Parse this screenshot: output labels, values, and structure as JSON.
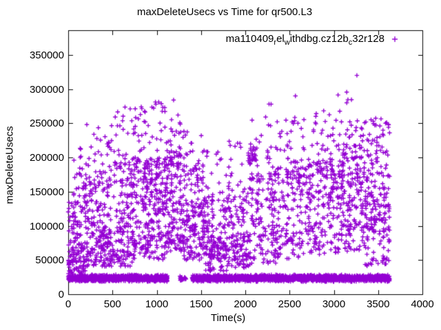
{
  "chart_data": {
    "type": "scatter",
    "title": "maxDeleteUsecs vs Time for qr500.L3",
    "xlabel": "Time(s)",
    "ylabel": "maxDeleteUsecs",
    "xlim": [
      0,
      4000
    ],
    "ylim": [
      0,
      386000
    ],
    "xticks": [
      0,
      500,
      1000,
      1500,
      2000,
      2500,
      3000,
      3500,
      4000
    ],
    "yticks": [
      0,
      50000,
      100000,
      150000,
      200000,
      250000,
      300000,
      350000
    ],
    "grid": false,
    "background_color": "#ffffff",
    "axis_color": "#000000",
    "legend": {
      "position": "top-right-inside",
      "marker": "+"
    },
    "series": [
      {
        "name": "ma110409_rel_withdbg.cz12b_c32r128",
        "display_segments": [
          {
            "text": "ma110409"
          },
          {
            "text": "r",
            "sub": true
          },
          {
            "text": "el"
          },
          {
            "text": "w",
            "sub": true
          },
          {
            "text": "ithdbg.cz12b"
          },
          {
            "text": "c",
            "sub": true
          },
          {
            "text": "32r128"
          }
        ],
        "marker": "+",
        "color": "#9400D3",
        "t_range": [
          0,
          3630
        ],
        "notable_points": [
          [
            3260,
            320000
          ],
          [
            2566,
            290000
          ],
          [
            1190,
            284000
          ],
          [
            1022,
            281000
          ],
          [
            990,
            278000
          ],
          [
            825,
            274000
          ],
          [
            700,
            271000
          ],
          [
            3180,
            252000
          ],
          [
            3420,
            255000
          ],
          [
            210,
            248000
          ],
          [
            1240,
            262000
          ],
          [
            3520,
            246000
          ]
        ],
        "point_cloud_model": {
          "seed": 1234,
          "floor_band": {
            "center": 23500,
            "spread": 5500,
            "min": 16500,
            "max": 31500,
            "segments": [
              {
                "t0": 0,
                "t1": 1120,
                "n": 880
              },
              {
                "t0": 1260,
                "t1": 1330,
                "n": 24
              },
              {
                "t0": 1400,
                "t1": 3630,
                "n": 1750
              }
            ]
          },
          "cloud_segments": [
            {
              "t0": 0,
              "t1": 60,
              "n": 55,
              "bands": [
                [
                  20000,
                  60000,
                  3
                ],
                [
                  60000,
                  135000,
                  2
                ]
              ]
            },
            {
              "t0": 60,
              "t1": 200,
              "n": 130,
              "bands": [
                [
                  30000,
                  90000,
                  3
                ],
                [
                  90000,
                  160000,
                  2
                ],
                [
                  160000,
                  215000,
                  0.4
                ]
              ]
            },
            {
              "t0": 200,
              "t1": 450,
              "n": 190,
              "bands": [
                [
                  40000,
                  100000,
                  3
                ],
                [
                  100000,
                  180000,
                  2.2
                ],
                [
                  180000,
                  255000,
                  0.6
                ]
              ]
            },
            {
              "t0": 450,
              "t1": 750,
              "n": 230,
              "bands": [
                [
                  40000,
                  100000,
                  2.3
                ],
                [
                  100000,
                  200000,
                  3
                ],
                [
                  200000,
                  275000,
                  0.7
                ]
              ]
            },
            {
              "t0": 750,
              "t1": 1100,
              "n": 290,
              "bands": [
                [
                  50000,
                  100000,
                  2
                ],
                [
                  100000,
                  200000,
                  4
                ],
                [
                  200000,
                  283000,
                  0.8
                ]
              ]
            },
            {
              "t0": 1100,
              "t1": 1300,
              "n": 170,
              "bands": [
                [
                  60000,
                  120000,
                  2.5
                ],
                [
                  120000,
                  210000,
                  3
                ],
                [
                  210000,
                  262000,
                  0.5
                ]
              ]
            },
            {
              "t0": 1300,
              "t1": 1550,
              "n": 185,
              "bands": [
                [
                  50000,
                  110000,
                  3
                ],
                [
                  110000,
                  190000,
                  2.5
                ],
                [
                  190000,
                  243000,
                  0.5
                ]
              ]
            },
            {
              "t0": 1550,
              "t1": 1800,
              "n": 175,
              "bands": [
                [
                  33000,
                  80000,
                  3.5
                ],
                [
                  80000,
                  140000,
                  2
                ],
                [
                  140000,
                  220000,
                  0.6
                ]
              ]
            },
            {
              "t0": 1800,
              "t1": 2050,
              "n": 150,
              "bands": [
                [
                  38000,
                  90000,
                  3
                ],
                [
                  90000,
                  160000,
                  2
                ],
                [
                  160000,
                  232000,
                  0.6
                ]
              ]
            },
            {
              "t0": 2030,
              "t1": 2120,
              "n": 25,
              "bands": [
                [
                  190000,
                  220000,
                  1
                ]
              ]
            },
            {
              "t0": 2050,
              "t1": 2350,
              "n": 165,
              "bands": [
                [
                  45000,
                  110000,
                  2.5
                ],
                [
                  110000,
                  180000,
                  2.5
                ],
                [
                  180000,
                  240000,
                  0.8
                ],
                [
                  240000,
                  288000,
                  0.12
                ]
              ]
            },
            {
              "t0": 2350,
              "t1": 2700,
              "n": 185,
              "bands": [
                [
                  50000,
                  120000,
                  2.5
                ],
                [
                  120000,
                  200000,
                  3
                ],
                [
                  200000,
                  263000,
                  0.6
                ]
              ]
            },
            {
              "t0": 2700,
              "t1": 3000,
              "n": 185,
              "bands": [
                [
                  55000,
                  130000,
                  2.5
                ],
                [
                  130000,
                  200000,
                  3
                ],
                [
                  200000,
                  278000,
                  0.6
                ]
              ]
            },
            {
              "t0": 3000,
              "t1": 3300,
              "n": 205,
              "bands": [
                [
                  60000,
                  130000,
                  2
                ],
                [
                  130000,
                  220000,
                  3.5
                ],
                [
                  220000,
                  300000,
                  0.45
                ]
              ]
            },
            {
              "t0": 3300,
              "t1": 3630,
              "n": 250,
              "bands": [
                [
                  40000,
                  90000,
                  1.5
                ],
                [
                  90000,
                  160000,
                  4
                ],
                [
                  160000,
                  230000,
                  2
                ],
                [
                  230000,
                  258000,
                  0.5
                ]
              ]
            }
          ]
        }
      }
    ]
  }
}
